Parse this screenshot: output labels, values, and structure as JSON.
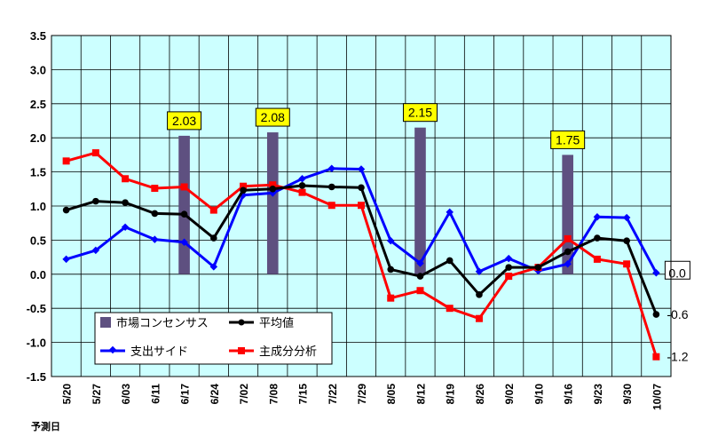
{
  "chart_data": {
    "type": "line",
    "xlabel": "予測日",
    "ylabel": "",
    "ylim": [
      -1.5,
      3.5
    ],
    "yticks": [
      3.5,
      3.0,
      2.5,
      2.0,
      1.5,
      1.0,
      0.5,
      0.0,
      -0.5,
      -1.0,
      -1.5
    ],
    "categories": [
      "5/20",
      "5/27",
      "6/03",
      "6/11",
      "6/17",
      "6/24",
      "7/02",
      "7/08",
      "7/15",
      "7/22",
      "7/29",
      "8/05",
      "8/12",
      "8/19",
      "8/26",
      "9/02",
      "9/10",
      "9/16",
      "9/23",
      "9/30",
      "10/07"
    ],
    "grid": true,
    "plot_background": "#ccffff",
    "legend_position": "bottom-left",
    "bars": {
      "name": "市場コンセンサス",
      "color": "#5e5080",
      "points": [
        {
          "category": "6/17",
          "value": 2.03,
          "label": "2.03"
        },
        {
          "category": "7/08",
          "value": 2.08,
          "label": "2.08"
        },
        {
          "category": "8/12",
          "value": 2.15,
          "label": "2.15"
        },
        {
          "category": "9/16",
          "value": 1.75,
          "label": "1.75"
        }
      ]
    },
    "series": [
      {
        "name": "平均値",
        "color": "#000000",
        "marker": "circle",
        "values": [
          0.94,
          1.07,
          1.05,
          0.89,
          0.88,
          0.53,
          1.23,
          1.25,
          1.3,
          1.28,
          1.27,
          0.07,
          -0.03,
          0.2,
          -0.3,
          0.1,
          0.1,
          0.33,
          0.53,
          0.49,
          -0.59
        ]
      },
      {
        "name": "支出サイド",
        "color": "#0000ff",
        "marker": "diamond",
        "values": [
          0.22,
          0.35,
          0.69,
          0.51,
          0.47,
          0.11,
          1.16,
          1.19,
          1.4,
          1.55,
          1.54,
          0.49,
          0.16,
          0.91,
          0.04,
          0.23,
          0.05,
          0.15,
          0.84,
          0.83,
          0.02
        ]
      },
      {
        "name": "主成分分析",
        "color": "#ff0000",
        "marker": "square",
        "values": [
          1.66,
          1.78,
          1.4,
          1.26,
          1.28,
          0.94,
          1.29,
          1.31,
          1.2,
          1.01,
          1.01,
          -0.35,
          -0.24,
          -0.5,
          -0.65,
          -0.03,
          0.1,
          0.52,
          0.22,
          0.15,
          -1.21
        ]
      }
    ],
    "end_labels": [
      {
        "series": "支出サイド",
        "text": "0.0",
        "boxed": true
      },
      {
        "series": "平均値",
        "text": "-0.6",
        "boxed": false
      },
      {
        "series": "主成分分析",
        "text": "-1.2",
        "boxed": false
      }
    ]
  }
}
